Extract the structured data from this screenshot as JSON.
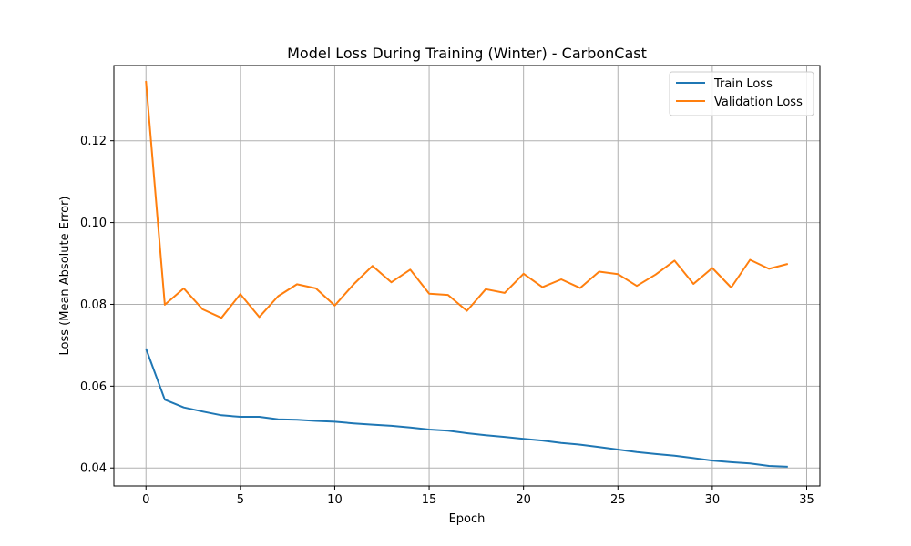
{
  "chart_data": {
    "type": "line",
    "title": "Model Loss During Training (Winter) - CarbonCast",
    "xlabel": "Epoch",
    "ylabel": "Loss (Mean Absolute Error)",
    "xlim": [
      -1.7,
      35.7
    ],
    "ylim": [
      0.0356,
      0.1384
    ],
    "xticks": [
      0,
      5,
      10,
      15,
      20,
      25,
      30,
      35
    ],
    "yticks": [
      0.04,
      0.06,
      0.08,
      0.1,
      0.12
    ],
    "ytick_labels": [
      "0.04",
      "0.06",
      "0.08",
      "0.10",
      "0.12"
    ],
    "grid": true,
    "legend_position": "top-right",
    "x": [
      0,
      1,
      2,
      3,
      4,
      5,
      6,
      7,
      8,
      9,
      10,
      11,
      12,
      13,
      14,
      15,
      16,
      17,
      18,
      19,
      20,
      21,
      22,
      23,
      24,
      25,
      26,
      27,
      28,
      29,
      30,
      31,
      32,
      33,
      34
    ],
    "series": [
      {
        "name": "Train Loss",
        "color": "#1f77b4",
        "values": [
          0.0692,
          0.0567,
          0.0548,
          0.0538,
          0.0529,
          0.0525,
          0.0525,
          0.0519,
          0.0518,
          0.0515,
          0.0513,
          0.0509,
          0.0506,
          0.0503,
          0.0499,
          0.0494,
          0.0491,
          0.0485,
          0.048,
          0.0476,
          0.0471,
          0.0467,
          0.0461,
          0.0457,
          0.0451,
          0.0445,
          0.0439,
          0.0434,
          0.043,
          0.0424,
          0.0418,
          0.0414,
          0.0411,
          0.0405,
          0.0403
        ]
      },
      {
        "name": "Validation Loss",
        "color": "#ff7f0e",
        "values": [
          0.1346,
          0.0799,
          0.0839,
          0.0788,
          0.0767,
          0.0825,
          0.0769,
          0.082,
          0.0849,
          0.0839,
          0.0797,
          0.0849,
          0.0894,
          0.0854,
          0.0885,
          0.0826,
          0.0823,
          0.0784,
          0.0837,
          0.0828,
          0.0875,
          0.0842,
          0.0861,
          0.084,
          0.088,
          0.0874,
          0.0845,
          0.0873,
          0.0907,
          0.085,
          0.0889,
          0.0841,
          0.0909,
          0.0887,
          0.0899
        ]
      }
    ]
  }
}
